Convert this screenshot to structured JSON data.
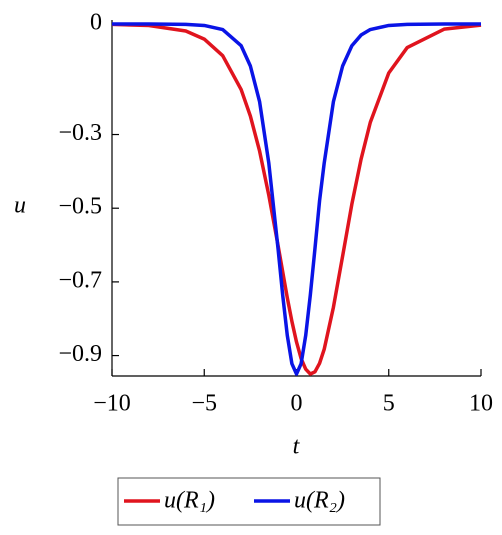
{
  "chart_data": {
    "type": "line",
    "x_label": "t",
    "y_label": "u",
    "x": [
      -10,
      -8,
      -6,
      -5,
      -4,
      -3,
      -2.5,
      -2,
      -1.5,
      -1,
      -0.75,
      -0.5,
      -0.25,
      0,
      0.25,
      0.5,
      0.75,
      1,
      1.25,
      1.5,
      2,
      2.5,
      3,
      3.5,
      4,
      5,
      6,
      8,
      10
    ],
    "series": [
      {
        "name": "u(R₁)",
        "color": "#e0141e",
        "values": [
          -0.001,
          -0.004,
          -0.019,
          -0.041,
          -0.086,
          -0.178,
          -0.25,
          -0.345,
          -0.465,
          -0.601,
          -0.672,
          -0.743,
          -0.807,
          -0.863,
          -0.908,
          -0.937,
          -0.95,
          -0.944,
          -0.921,
          -0.883,
          -0.769,
          -0.63,
          -0.489,
          -0.367,
          -0.267,
          -0.133,
          -0.064,
          -0.014,
          -0.003
        ]
      },
      {
        "name": "u(R₂)",
        "color": "#0a14e6",
        "values": [
          0,
          0,
          -0.001,
          -0.004,
          -0.015,
          -0.059,
          -0.114,
          -0.211,
          -0.378,
          -0.61,
          -0.735,
          -0.845,
          -0.922,
          -0.95,
          -0.922,
          -0.845,
          -0.735,
          -0.61,
          -0.48,
          -0.378,
          -0.211,
          -0.114,
          -0.059,
          -0.03,
          -0.015,
          -0.004,
          -0.001,
          0,
          0
        ]
      }
    ],
    "xlim": [
      -10,
      10
    ],
    "xticks": [
      {
        "value": -10,
        "label": "−10"
      },
      {
        "value": -5,
        "label": "−5"
      },
      0,
      5,
      10
    ],
    "ylim": [
      -0.95,
      0
    ],
    "yticks": [
      0,
      {
        "value": -0.3,
        "label": "−0.3"
      },
      {
        "value": -0.5,
        "label": "−0.5"
      },
      {
        "value": -0.7,
        "label": "−0.7"
      },
      {
        "value": -0.9,
        "label": "−0.9"
      }
    ],
    "legend": "bottom"
  }
}
